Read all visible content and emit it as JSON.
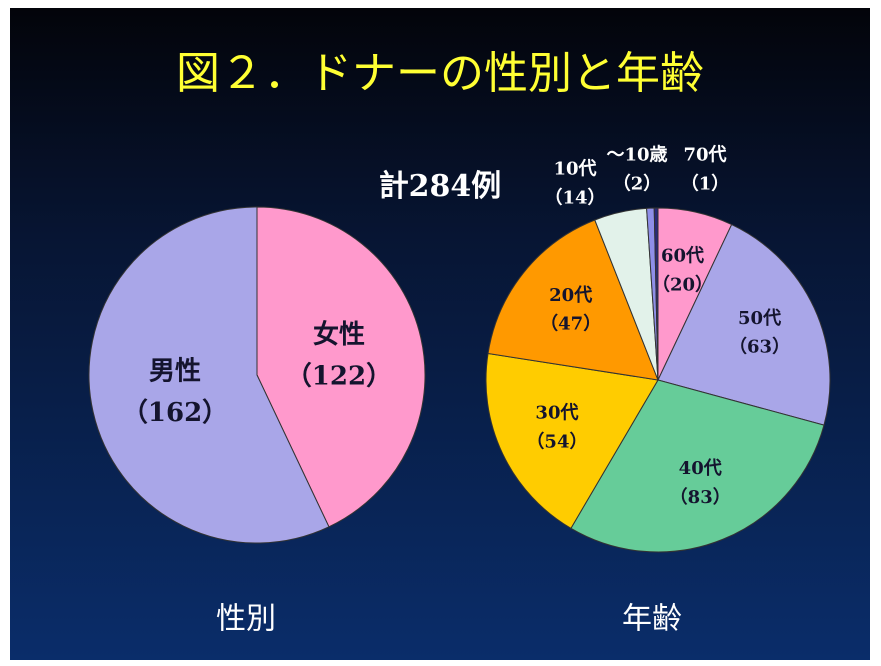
{
  "title": "図２．ドナーの性別と年齢",
  "chart_data": [
    {
      "type": "pie",
      "title": "性別",
      "categories": [
        "女性",
        "男性"
      ],
      "values": [
        122,
        162
      ],
      "value_labels": [
        "（122）",
        "（162）"
      ],
      "colors": [
        "#ff99cc",
        "#a9a6e8"
      ]
    },
    {
      "type": "pie",
      "title": "年齢",
      "annotation": "計284例",
      "categories": [
        "60代",
        "50代",
        "40代",
        "30代",
        "20代",
        "10代",
        "～10歳",
        "70代"
      ],
      "values": [
        20,
        63,
        83,
        54,
        47,
        14,
        2,
        1
      ],
      "value_labels": [
        "（20）",
        "（63）",
        "（83）",
        "（54）",
        "（47）",
        "（14）",
        "（2）",
        "（1）"
      ],
      "colors": [
        "#ff99cc",
        "#a9a6e8",
        "#66cc99",
        "#ffcc00",
        "#ff9900",
        "#e2f2ea",
        "#8f8fe8",
        "#2a2a7a"
      ]
    }
  ]
}
